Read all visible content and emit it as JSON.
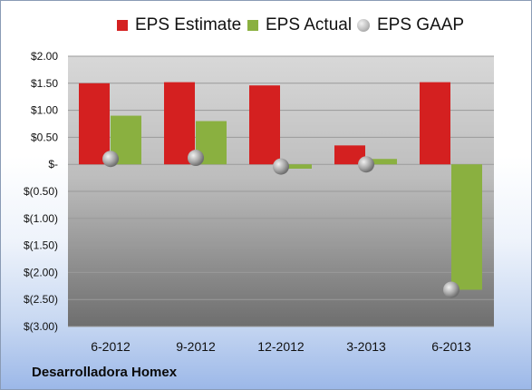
{
  "company_label": "Desarrolladora Homex",
  "colors": {
    "estimate": "#d42020",
    "actual": "#8ab040",
    "gaap": "#b8b8b8"
  },
  "chart_data": {
    "type": "bar",
    "categories": [
      "6-2012",
      "9-2012",
      "12-2012",
      "3-2013",
      "6-2013"
    ],
    "series": [
      {
        "name": "EPS Estimate",
        "values": [
          1.5,
          1.52,
          1.46,
          0.35,
          1.52
        ]
      },
      {
        "name": "EPS Actual",
        "values": [
          0.9,
          0.8,
          -0.08,
          0.1,
          -2.32
        ]
      },
      {
        "name": "EPS GAAP",
        "values": [
          0.1,
          0.12,
          -0.04,
          0.0,
          -2.32
        ]
      }
    ],
    "ylim": [
      -3.0,
      2.0
    ],
    "yticks": [
      2.0,
      1.5,
      1.0,
      0.5,
      0.0,
      -0.5,
      -1.0,
      -1.5,
      -2.0,
      -2.5,
      -3.0
    ],
    "ytick_labels": [
      "$2.00",
      "$1.50",
      "$1.00",
      "$0.50",
      "$-",
      "$(0.50)",
      "$(1.00)",
      "$(1.50)",
      "$(2.00)",
      "$(2.50)",
      "$(3.00)"
    ],
    "grid": true,
    "legend_position": "top"
  }
}
